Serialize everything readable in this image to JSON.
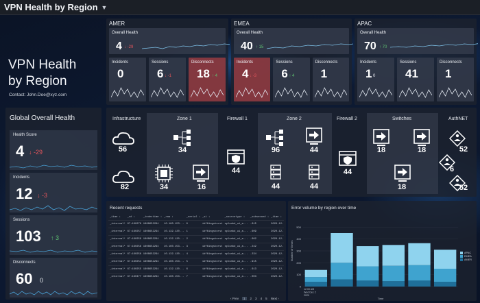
{
  "topbar": {
    "title": "VPN Health by Region"
  },
  "hero": {
    "title_line1": "VPN Health",
    "title_line2": "by Region",
    "contact": "Contact: John.Doe@xyz.com"
  },
  "regions": [
    {
      "name": "AMER",
      "overall": {
        "label": "Overall Health",
        "value": "4",
        "delta": "↓ -29",
        "trend": "down"
      },
      "incidents": {
        "label": "Incidents",
        "value": "0",
        "alert": false
      },
      "sessions": {
        "label": "Sessions",
        "value": "6",
        "delta": "↓ -1",
        "alert": false
      },
      "disconnects": {
        "label": "Disconnects",
        "value": "18",
        "delta": "↑ 4",
        "alert": true
      }
    },
    {
      "name": "EMEA",
      "overall": {
        "label": "Overall Health",
        "value": "40",
        "delta": "↑ 15",
        "trend": "up"
      },
      "incidents": {
        "label": "Incidents",
        "value": "4",
        "delta": "↓ -3",
        "alert": true
      },
      "sessions": {
        "label": "Sessions",
        "value": "6",
        "delta": "↑ 4",
        "alert": false
      },
      "disconnects": {
        "label": "Disconnects",
        "value": "1",
        "alert": false
      }
    },
    {
      "name": "APAC",
      "overall": {
        "label": "Overall Health",
        "value": "70",
        "delta": "↑ 70",
        "trend": "up"
      },
      "incidents": {
        "label": "Incidents",
        "value": "1",
        "delta": "0",
        "alert": false
      },
      "sessions": {
        "label": "Sessions",
        "value": "41",
        "alert": false
      },
      "disconnects": {
        "label": "Disconnects",
        "value": "1",
        "alert": false
      }
    }
  ],
  "global": {
    "title": "Global Overall Health",
    "health": {
      "label": "Health Score",
      "value": "4",
      "delta": "↓ -29"
    },
    "incidents": {
      "label": "Incidents",
      "value": "12",
      "delta": "↓ -3"
    },
    "sessions": {
      "label": "Sessions",
      "value": "103",
      "delta": "↑ 3"
    },
    "disconnects": {
      "label": "Disconnects",
      "value": "60",
      "delta": "0"
    }
  },
  "network": {
    "infrastructure": {
      "label": "Infrastructure",
      "cloud1": "56",
      "cloud2": "82"
    },
    "zone1": {
      "label": "Zone 1",
      "hub": "34",
      "chip": "34",
      "arrow": "16"
    },
    "firewall1": {
      "label": "Firewall 1",
      "value": "44"
    },
    "zone2": {
      "label": "Zone 2",
      "hub": "96",
      "arrow": "44",
      "server1": "44",
      "server2": "44"
    },
    "firewall2": {
      "label": "Firewall 2",
      "value": "44"
    },
    "switches": {
      "label": "Switches",
      "sw1": "18",
      "sw2": "18",
      "sw3": "18"
    },
    "authnet": {
      "label": "AuthNET",
      "a1": "52",
      "a2": "6",
      "a3": "52"
    }
  },
  "table": {
    "title": "Recent requests",
    "columns": [
      "_time ↕",
      "_cd ↕",
      "_indextime ↕",
      "_raw ↕",
      "_serial ↕",
      "_si ↕",
      "_sourcetype ↕",
      "_subsecond ↕",
      "_time ↕"
    ],
    "rows": [
      [
        "_internal*",
        "67:190270",
        "1608652294",
        "10.160.153...",
        "0",
        "idf6ingstorst",
        "splunkd_ui_a...",
        ".615",
        "2020-12-"
      ],
      [
        "_internal*",
        "67:190257",
        "1608652294",
        "10.132.120...",
        "1",
        "idf6ingstorst",
        "splunkd_ui_a...",
        ".609",
        "2020-12-"
      ],
      [
        "_internal*",
        "67:190259",
        "1608652294",
        "10.132.120...",
        "2",
        "idf6ingstorst",
        "splunkd_ui_a...",
        ".602",
        "2020-12-"
      ],
      [
        "_internal*",
        "67:190258",
        "1608652294",
        "10.160.153...",
        "3",
        "idf6ingstorst",
        "splunkd_ui_a...",
        ".242",
        "2020-12-"
      ],
      [
        "_internal*",
        "67:190256",
        "1608652294",
        "10.132.120...",
        "4",
        "idf6ingstorst",
        "splunkd_ui_a...",
        ".234",
        "2020-12-"
      ],
      [
        "_internal*",
        "67:190254",
        "1608652294",
        "10.160.153...",
        "5",
        "idf6ingstorst",
        "splunkd_ui_a...",
        ".915",
        "2020-12-"
      ],
      [
        "_internal*",
        "67:190255",
        "1608652294",
        "10.132.120...",
        "6",
        "idf6ingstorst",
        "splunkd_ui_a...",
        ".613",
        "2020-12-"
      ],
      [
        "_internal*",
        "67:190477",
        "1608652294",
        "10.160.153...",
        "7",
        "idf6ingstorst",
        "splunkd_ui_a...",
        ".003",
        "2020-12-"
      ]
    ],
    "pager": {
      "prev": "‹ Prev",
      "pages": [
        "1",
        "2",
        "3",
        "4",
        "5"
      ],
      "next": "Next ›"
    }
  },
  "chart_data": {
    "type": "bar",
    "stacked": true,
    "title": "Error volume by region over time",
    "xlabel": "Time",
    "ylabel": "Number of Errors",
    "ylim": [
      0,
      600
    ],
    "yticks": [
      "0",
      "100",
      "200",
      "300",
      "400",
      "500"
    ],
    "categories": [
      "12:00 AM Wed Dec 2 2020",
      "",
      "",
      "",
      "",
      ""
    ],
    "series": [
      {
        "name": "AMER",
        "values": [
          40,
          60,
          50,
          45,
          50,
          40
        ],
        "color": "#1f6f9a"
      },
      {
        "name": "EMEA",
        "values": [
          40,
          140,
          120,
          130,
          130,
          110
        ],
        "color": "#3fa3cf"
      },
      {
        "name": "APAC",
        "values": [
          60,
          250,
          170,
          175,
          185,
          160
        ],
        "color": "#8fd3ee"
      }
    ],
    "legend": "right"
  }
}
